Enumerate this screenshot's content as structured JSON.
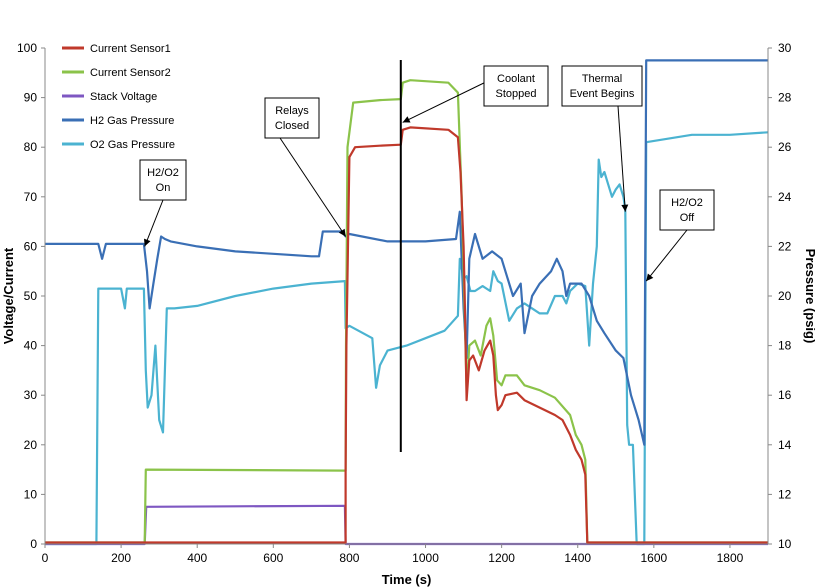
{
  "chart_data": {
    "type": "line",
    "xlabel": "Time (s)",
    "ylabel": "Voltage/Current",
    "y2label": "Pressure (psig)",
    "xlim": [
      0,
      1900
    ],
    "ylim": [
      0,
      100
    ],
    "y2lim": [
      10,
      30
    ],
    "xticks": [
      0,
      200,
      400,
      600,
      800,
      1000,
      1200,
      1400,
      1600,
      1800
    ],
    "yticks": [
      0,
      10,
      20,
      30,
      40,
      50,
      60,
      70,
      80,
      90,
      100
    ],
    "y2ticks": [
      10,
      12,
      14,
      16,
      18,
      20,
      22,
      24,
      26,
      28,
      30
    ],
    "grid": false,
    "legend": "top-left",
    "series": [
      {
        "name": "Current Sensor1",
        "color": "#c0392b",
        "axis": "left",
        "points": [
          [
            0,
            0.3
          ],
          [
            260,
            0.3
          ],
          [
            265,
            0.3
          ],
          [
            790,
            0.3
          ],
          [
            790,
            15
          ],
          [
            792,
            40
          ],
          [
            800,
            78
          ],
          [
            815,
            80
          ],
          [
            880,
            80.3
          ],
          [
            935,
            80.5
          ],
          [
            940,
            83.5
          ],
          [
            960,
            84
          ],
          [
            1060,
            83.5
          ],
          [
            1085,
            82
          ],
          [
            1092,
            75
          ],
          [
            1100,
            60
          ],
          [
            1103,
            50
          ],
          [
            1108,
            29
          ],
          [
            1115,
            37
          ],
          [
            1125,
            38
          ],
          [
            1140,
            35
          ],
          [
            1155,
            39
          ],
          [
            1170,
            41
          ],
          [
            1178,
            38
          ],
          [
            1185,
            30
          ],
          [
            1190,
            27
          ],
          [
            1200,
            28
          ],
          [
            1210,
            30
          ],
          [
            1240,
            30.5
          ],
          [
            1260,
            29
          ],
          [
            1300,
            27.5
          ],
          [
            1340,
            26
          ],
          [
            1360,
            25
          ],
          [
            1380,
            22
          ],
          [
            1395,
            19
          ],
          [
            1410,
            17
          ],
          [
            1420,
            14
          ],
          [
            1425,
            0.3
          ],
          [
            1900,
            0.3
          ]
        ]
      },
      {
        "name": "Current Sensor2",
        "color": "#8bc34a",
        "axis": "left",
        "points": [
          [
            0,
            0.3
          ],
          [
            255,
            0.3
          ],
          [
            262,
            0.3
          ],
          [
            265,
            15
          ],
          [
            790,
            14.8
          ],
          [
            791,
            40
          ],
          [
            795,
            80
          ],
          [
            810,
            89
          ],
          [
            880,
            89.5
          ],
          [
            935,
            89.7
          ],
          [
            940,
            93
          ],
          [
            960,
            93.5
          ],
          [
            1060,
            93
          ],
          [
            1085,
            91
          ],
          [
            1095,
            70
          ],
          [
            1105,
            40
          ],
          [
            1108,
            31
          ],
          [
            1115,
            40
          ],
          [
            1130,
            41
          ],
          [
            1145,
            38
          ],
          [
            1160,
            44
          ],
          [
            1170,
            45.5
          ],
          [
            1178,
            42
          ],
          [
            1188,
            33
          ],
          [
            1200,
            32
          ],
          [
            1210,
            34
          ],
          [
            1240,
            34
          ],
          [
            1260,
            32
          ],
          [
            1300,
            31
          ],
          [
            1340,
            29.5
          ],
          [
            1380,
            26
          ],
          [
            1395,
            22
          ],
          [
            1410,
            20
          ],
          [
            1420,
            17
          ],
          [
            1425,
            0.3
          ],
          [
            1900,
            0.3
          ]
        ]
      },
      {
        "name": "Stack Voltage",
        "color": "#7e57c2",
        "axis": "left",
        "points": [
          [
            0,
            0
          ],
          [
            262,
            0
          ],
          [
            266,
            7.5
          ],
          [
            500,
            7.6
          ],
          [
            788,
            7.7
          ],
          [
            790,
            0
          ],
          [
            1900,
            0
          ]
        ]
      },
      {
        "name": "H2 Gas Pressure",
        "color": "#3a6fb5",
        "axis": "right",
        "points": [
          [
            0,
            22.1
          ],
          [
            140,
            22.1
          ],
          [
            150,
            21.5
          ],
          [
            160,
            22.1
          ],
          [
            260,
            22.1
          ],
          [
            268,
            21
          ],
          [
            275,
            19.5
          ],
          [
            285,
            20.5
          ],
          [
            295,
            21.5
          ],
          [
            305,
            22.4
          ],
          [
            315,
            22.3
          ],
          [
            330,
            22.2
          ],
          [
            400,
            22
          ],
          [
            500,
            21.8
          ],
          [
            600,
            21.7
          ],
          [
            700,
            21.6
          ],
          [
            720,
            21.6
          ],
          [
            730,
            22.6
          ],
          [
            780,
            22.6
          ],
          [
            790,
            22.4
          ],
          [
            800,
            22.5
          ],
          [
            900,
            22.2
          ],
          [
            1000,
            22.2
          ],
          [
            1080,
            22.3
          ],
          [
            1090,
            23.4
          ],
          [
            1100,
            19.5
          ],
          [
            1108,
            17.5
          ],
          [
            1115,
            21.5
          ],
          [
            1130,
            22.5
          ],
          [
            1150,
            21.5
          ],
          [
            1175,
            21.8
          ],
          [
            1200,
            21.5
          ],
          [
            1230,
            20
          ],
          [
            1250,
            20.5
          ],
          [
            1260,
            18.5
          ],
          [
            1280,
            20
          ],
          [
            1300,
            20.5
          ],
          [
            1330,
            21
          ],
          [
            1345,
            21.5
          ],
          [
            1360,
            21
          ],
          [
            1370,
            20
          ],
          [
            1380,
            20.5
          ],
          [
            1410,
            20.5
          ],
          [
            1430,
            20
          ],
          [
            1450,
            19
          ],
          [
            1470,
            18.5
          ],
          [
            1500,
            17.8
          ],
          [
            1520,
            17.5
          ],
          [
            1540,
            16
          ],
          [
            1560,
            15
          ],
          [
            1575,
            14
          ],
          [
            1580,
            29.5
          ],
          [
            1900,
            29.5
          ]
        ]
      },
      {
        "name": "O2 Gas Pressure",
        "color": "#4bb3d1",
        "axis": "right",
        "points": [
          [
            0,
            10
          ],
          [
            135,
            10
          ],
          [
            140,
            20.3
          ],
          [
            200,
            20.3
          ],
          [
            210,
            19.5
          ],
          [
            215,
            20.3
          ],
          [
            260,
            20.3
          ],
          [
            265,
            17
          ],
          [
            270,
            15.5
          ],
          [
            280,
            16
          ],
          [
            290,
            18
          ],
          [
            300,
            15
          ],
          [
            310,
            14.5
          ],
          [
            320,
            19.5
          ],
          [
            340,
            19.5
          ],
          [
            400,
            19.6
          ],
          [
            500,
            20
          ],
          [
            600,
            20.3
          ],
          [
            700,
            20.5
          ],
          [
            788,
            20.6
          ],
          [
            790,
            18.7
          ],
          [
            800,
            18.8
          ],
          [
            860,
            18.3
          ],
          [
            870,
            16.3
          ],
          [
            880,
            17.2
          ],
          [
            900,
            17.8
          ],
          [
            950,
            18
          ],
          [
            1000,
            18.3
          ],
          [
            1050,
            18.6
          ],
          [
            1085,
            19.2
          ],
          [
            1090,
            21.5
          ],
          [
            1100,
            20.7
          ],
          [
            1108,
            20.8
          ],
          [
            1118,
            20.2
          ],
          [
            1130,
            20.2
          ],
          [
            1150,
            20.4
          ],
          [
            1170,
            20.2
          ],
          [
            1178,
            21
          ],
          [
            1190,
            20.6
          ],
          [
            1200,
            20.5
          ],
          [
            1220,
            19
          ],
          [
            1240,
            19.5
          ],
          [
            1260,
            19.7
          ],
          [
            1280,
            19.5
          ],
          [
            1300,
            19.3
          ],
          [
            1320,
            19.3
          ],
          [
            1340,
            20
          ],
          [
            1360,
            20
          ],
          [
            1370,
            19.7
          ],
          [
            1380,
            20.2
          ],
          [
            1400,
            20.5
          ],
          [
            1420,
            20.4
          ],
          [
            1430,
            18
          ],
          [
            1440,
            20.5
          ],
          [
            1450,
            22
          ],
          [
            1455,
            25.5
          ],
          [
            1462,
            24.8
          ],
          [
            1470,
            25
          ],
          [
            1480,
            24.5
          ],
          [
            1490,
            24
          ],
          [
            1500,
            24.3
          ],
          [
            1510,
            24.5
          ],
          [
            1520,
            24
          ],
          [
            1525,
            23.5
          ],
          [
            1530,
            14.8
          ],
          [
            1535,
            14
          ],
          [
            1545,
            14
          ],
          [
            1555,
            10
          ],
          [
            1575,
            10
          ],
          [
            1580,
            26.2
          ],
          [
            1700,
            26.5
          ],
          [
            1800,
            26.5
          ],
          [
            1900,
            26.6
          ]
        ]
      }
    ],
    "annotations": [
      {
        "lines": [
          "H2/O2",
          "On"
        ],
        "x": 262,
        "y": 60
      },
      {
        "lines": [
          "Relays",
          "Closed"
        ],
        "x": 790,
        "y": 62
      },
      {
        "lines": [
          "Coolant",
          "Stopped"
        ],
        "x": 940,
        "y": 85
      },
      {
        "lines": [
          "Thermal",
          "Event Begins"
        ],
        "x": 1525,
        "y": 67
      },
      {
        "lines": [
          "H2/O2",
          "Off"
        ],
        "x": 1580,
        "y": 53
      }
    ],
    "vline_x": 935
  }
}
